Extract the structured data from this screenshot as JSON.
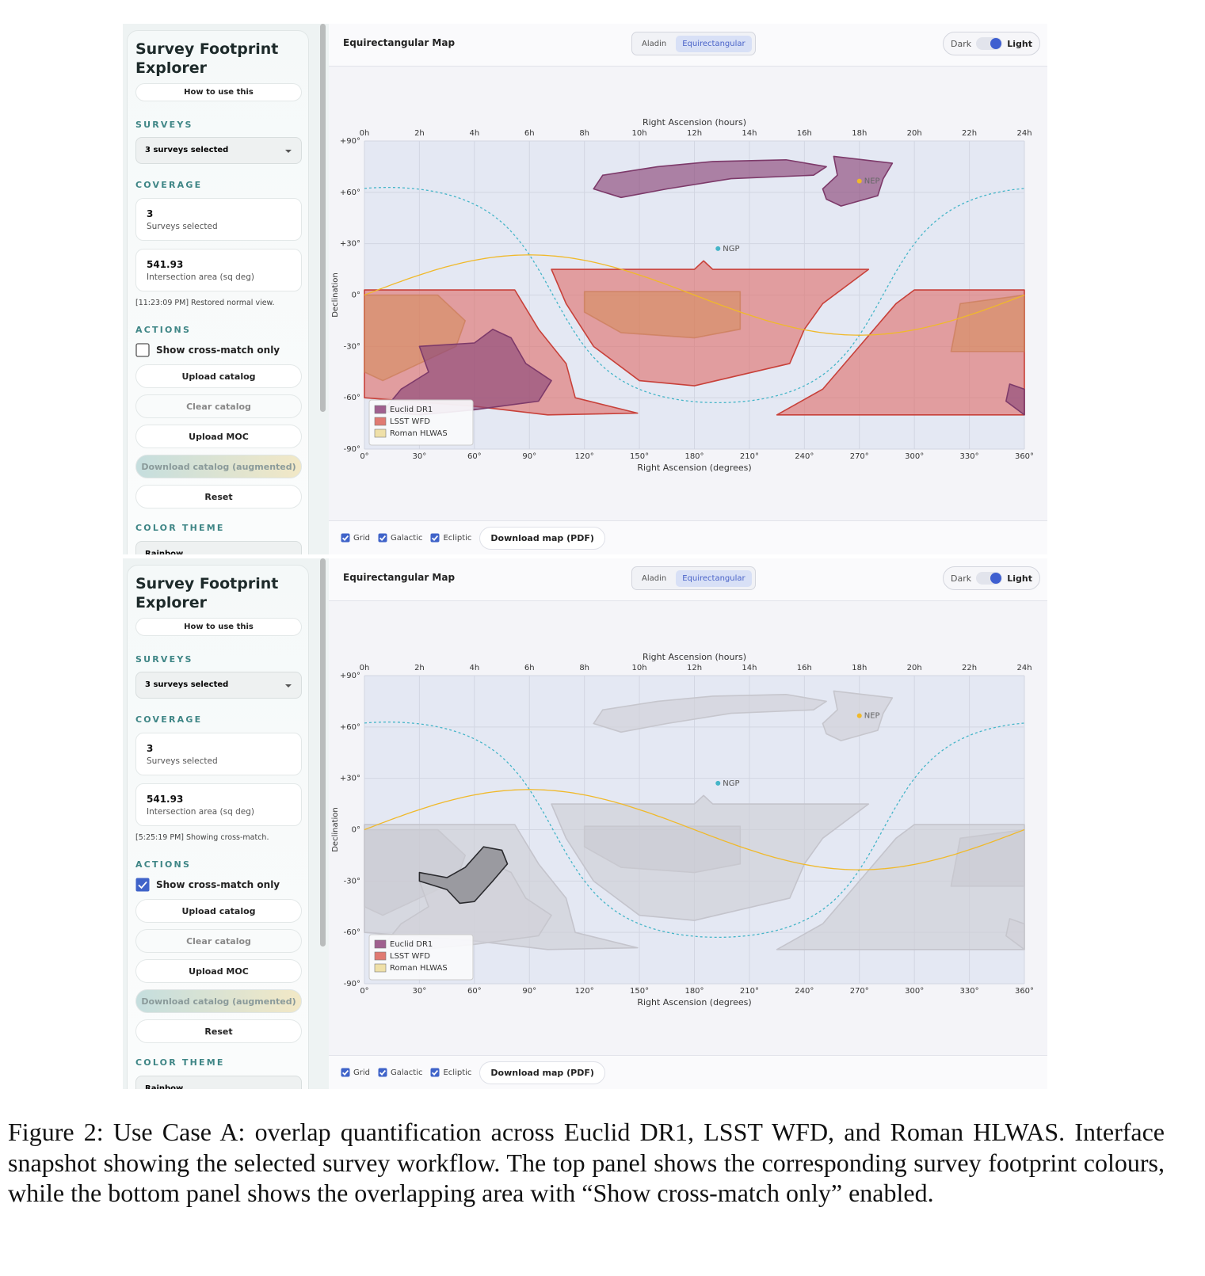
{
  "panels": [
    {
      "sidebar": {
        "title": "Survey Footprint Explorer",
        "help": "How to use this",
        "surveys_heading": "SURVEYS",
        "surveys_select": "3 surveys selected",
        "coverage_heading": "COVERAGE",
        "stats": [
          {
            "value": "3",
            "label": "Surveys selected"
          },
          {
            "value": "541.93",
            "label": "Intersection area (sq deg)"
          }
        ],
        "status": "[11:23:09 PM] Restored normal view.",
        "actions_heading": "ACTIONS",
        "crossmatch": {
          "label": "Show cross-match only",
          "checked": false
        },
        "buttons": [
          "Upload catalog",
          "Clear catalog",
          "Upload MOC",
          "Download catalog (augmented)",
          "Reset"
        ],
        "theme_heading": "COLOR THEME",
        "theme_select": "Rainbow"
      },
      "map": {
        "title": "Equirectangular Map",
        "views": [
          "Aladin",
          "Equirectangular"
        ],
        "active_view": 1,
        "theme": {
          "dark": "Dark",
          "light": "Light"
        },
        "axes": {
          "top_label": "Right Ascension (hours)",
          "top_ticks": [
            "0h",
            "2h",
            "4h",
            "6h",
            "8h",
            "10h",
            "12h",
            "14h",
            "16h",
            "18h",
            "20h",
            "22h",
            "24h"
          ],
          "bottom_label": "Right Ascension (degrees)",
          "bottom_ticks": [
            "0°",
            "30°",
            "60°",
            "90°",
            "120°",
            "150°",
            "180°",
            "210°",
            "240°",
            "270°",
            "300°",
            "330°",
            "360°"
          ],
          "y_label": "Declination",
          "y_ticks": [
            "+90°",
            "+60°",
            "+30°",
            "0°",
            "-30°",
            "-60°",
            "-90°"
          ]
        },
        "poles": {
          "nep": "NEP",
          "ngp": "NGP"
        },
        "legend": [
          {
            "name": "Euclid DR1",
            "color": "#a0608f"
          },
          {
            "name": "LSST WFD",
            "color": "#e07a72"
          },
          {
            "name": "Roman HLWAS",
            "color": "#efe0a8"
          }
        ],
        "footer": {
          "toggles": [
            {
              "label": "Grid",
              "checked": true
            },
            {
              "label": "Galactic",
              "checked": true
            },
            {
              "label": "Ecliptic",
              "checked": true
            }
          ],
          "download": "Download map (PDF)"
        }
      }
    },
    {
      "sidebar": {
        "title": "Survey Footprint Explorer",
        "help": "How to use this",
        "surveys_heading": "SURVEYS",
        "surveys_select": "3 surveys selected",
        "coverage_heading": "COVERAGE",
        "stats": [
          {
            "value": "3",
            "label": "Surveys selected"
          },
          {
            "value": "541.93",
            "label": "Intersection area (sq deg)"
          }
        ],
        "status": "[5:25:19 PM] Showing cross-match.",
        "actions_heading": "ACTIONS",
        "crossmatch": {
          "label": "Show cross-match only",
          "checked": true
        },
        "buttons": [
          "Upload catalog",
          "Clear catalog",
          "Upload MOC",
          "Download catalog (augmented)",
          "Reset"
        ],
        "theme_heading": "COLOR THEME",
        "theme_select": "Rainbow"
      },
      "map": {
        "title": "Equirectangular Map",
        "views": [
          "Aladin",
          "Equirectangular"
        ],
        "active_view": 1,
        "theme": {
          "dark": "Dark",
          "light": "Light"
        },
        "axes": {
          "top_label": "Right Ascension (hours)",
          "top_ticks": [
            "0h",
            "2h",
            "4h",
            "6h",
            "8h",
            "10h",
            "12h",
            "14h",
            "16h",
            "18h",
            "20h",
            "22h",
            "24h"
          ],
          "bottom_label": "Right Ascension (degrees)",
          "bottom_ticks": [
            "0°",
            "30°",
            "60°",
            "90°",
            "120°",
            "150°",
            "180°",
            "210°",
            "240°",
            "270°",
            "300°",
            "330°",
            "360°"
          ],
          "y_label": "Declination",
          "y_ticks": [
            "+90°",
            "+60°",
            "+30°",
            "0°",
            "-30°",
            "-60°",
            "-90°"
          ]
        },
        "poles": {
          "nep": "NEP",
          "ngp": "NGP"
        },
        "legend": [
          {
            "name": "Euclid DR1",
            "color": "#a0608f"
          },
          {
            "name": "LSST WFD",
            "color": "#e07a72"
          },
          {
            "name": "Roman HLWAS",
            "color": "#efe0a8"
          }
        ],
        "footer": {
          "toggles": [
            {
              "label": "Grid",
              "checked": true
            },
            {
              "label": "Galactic",
              "checked": true
            },
            {
              "label": "Ecliptic",
              "checked": true
            }
          ],
          "download": "Download map (PDF)"
        }
      }
    }
  ],
  "caption": "Figure 2: Use Case A: overlap quantification across Euclid DR1, LSST WFD, and Roman HLWAS. Interface snapshot showing the selected survey workflow. The top panel shows the corresponding survey footprint colours, while the bottom panel shows the overlapping area with “Show cross-match only” enabled."
}
